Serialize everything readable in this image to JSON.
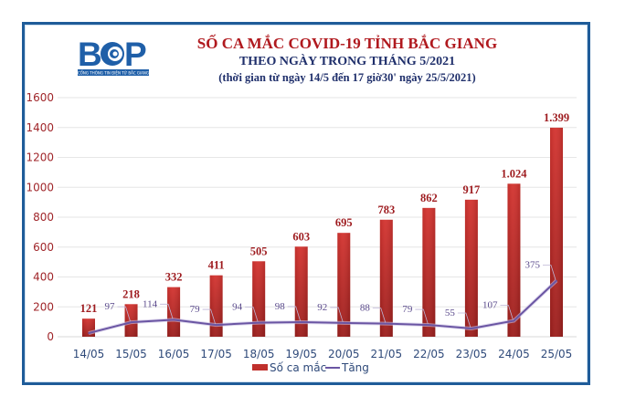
{
  "header": {
    "logo_text": "BGP",
    "logo_subtext": "CỔNG THÔNG TIN ĐIỆN TỬ BẮC GIANG",
    "title": "SỐ CA MẮC COVID-19 TỈNH BẮC GIANG",
    "subtitle": "THEO NGÀY TRONG THÁNG 5/2021",
    "note": "(thời gian từ ngày 14/5 đến 17 giờ30' ngày 25/5/2021)"
  },
  "colors": {
    "frame": "#1f5c99",
    "bar": "#c6302c",
    "bar_dark": "#9b1e1c",
    "line": "#6a55a3",
    "title_red": "#b0191e",
    "title_navy": "#1f2f6b"
  },
  "chart_data": {
    "type": "bar",
    "title": "SỐ CA MẮC COVID-19 TỈNH BẮC GIANG",
    "xlabel": "",
    "ylabel": "",
    "ylim": [
      0,
      1600
    ],
    "yticks": [
      0,
      200,
      400,
      600,
      800,
      1000,
      1200,
      1400,
      1600
    ],
    "grid": true,
    "legend_position": "bottom",
    "categories": [
      "14/05",
      "15/05",
      "16/05",
      "17/05",
      "18/05",
      "19/05",
      "20/05",
      "21/05",
      "22/05",
      "23/05",
      "24/05",
      "25/05"
    ],
    "series": [
      {
        "name": "Số ca mắc",
        "kind": "bar",
        "values": [
          121,
          218,
          332,
          411,
          505,
          603,
          695,
          783,
          862,
          917,
          1024,
          1399
        ],
        "labels": [
          "121",
          "218",
          "332",
          "411",
          "505",
          "603",
          "695",
          "783",
          "862",
          "917",
          "1.024",
          "1.399"
        ]
      },
      {
        "name": "Tăng",
        "kind": "line",
        "values": [
          24,
          97,
          114,
          79,
          94,
          98,
          92,
          88,
          79,
          55,
          107,
          375
        ],
        "labels": [
          "",
          "97",
          "114",
          "79",
          "94",
          "98",
          "92",
          "88",
          "79",
          "55",
          "107",
          "375"
        ]
      }
    ]
  }
}
